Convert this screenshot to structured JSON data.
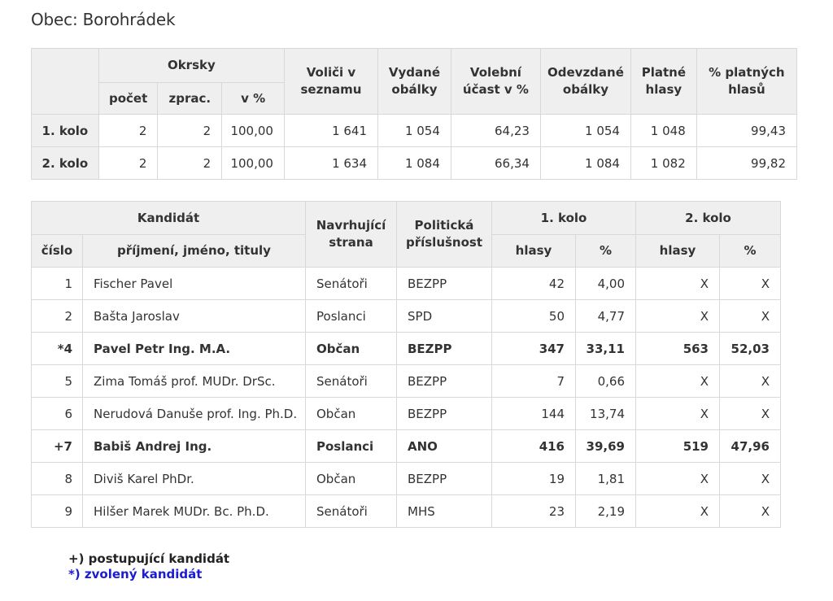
{
  "page_title": "Obec: Borohrádek",
  "turnout_table": {
    "headers": {
      "okrsky": "Okrsky",
      "pocet": "počet",
      "zprac": "zprac.",
      "v_pct": "v %",
      "volici": "Voliči v seznamu",
      "vydane": "Vydané obálky",
      "ucast": "Volební účast v %",
      "odevzdane": "Odevzdané obálky",
      "platne": "Platné hlasy",
      "pct_platnych": "% platných hlasů"
    },
    "rows": [
      {
        "label": "1. kolo",
        "pocet": "2",
        "zprac": "2",
        "v_pct": "100,00",
        "volici": "1 641",
        "vydane": "1 054",
        "ucast": "64,23",
        "odevzdane": "1 054",
        "platne": "1 048",
        "pct_platnych": "99,43"
      },
      {
        "label": "2. kolo",
        "pocet": "2",
        "zprac": "2",
        "v_pct": "100,00",
        "volici": "1 634",
        "vydane": "1 084",
        "ucast": "66,34",
        "odevzdane": "1 084",
        "platne": "1 082",
        "pct_platnych": "99,82"
      }
    ]
  },
  "candidates_table": {
    "headers": {
      "kandidat": "Kandidát",
      "cislo": "číslo",
      "jmeno": "příjmení, jméno, tituly",
      "strana": "Navrhující strana",
      "prislusnost": "Politická příslušnost",
      "kolo1": "1. kolo",
      "kolo2": "2. kolo",
      "hlasy": "hlasy",
      "pct": "%"
    },
    "rows": [
      {
        "cislo": "1",
        "jmeno": "Fischer Pavel",
        "strana": "Senátoři",
        "prislusnost": "BEZPP",
        "h1": "42",
        "p1": "4,00",
        "h2": "X",
        "p2": "X"
      },
      {
        "cislo": "2",
        "jmeno": "Bašta Jaroslav",
        "strana": "Poslanci",
        "prislusnost": "SPD",
        "h1": "50",
        "p1": "4,77",
        "h2": "X",
        "p2": "X"
      },
      {
        "cislo": "*4",
        "jmeno": "Pavel Petr Ing. M.A.",
        "strana": "Občan",
        "prislusnost": "BEZPP",
        "h1": "347",
        "p1": "33,11",
        "h2": "563",
        "p2": "52,03"
      },
      {
        "cislo": "5",
        "jmeno": "Zima Tomáš prof. MUDr. DrSc.",
        "strana": "Senátoři",
        "prislusnost": "BEZPP",
        "h1": "7",
        "p1": "0,66",
        "h2": "X",
        "p2": "X"
      },
      {
        "cislo": "6",
        "jmeno": "Nerudová Danuše prof. Ing. Ph.D.",
        "strana": "Občan",
        "prislusnost": "BEZPP",
        "h1": "144",
        "p1": "13,74",
        "h2": "X",
        "p2": "X"
      },
      {
        "cislo": "+7",
        "jmeno": "Babiš Andrej Ing.",
        "strana": "Poslanci",
        "prislusnost": "ANO",
        "h1": "416",
        "p1": "39,69",
        "h2": "519",
        "p2": "47,96"
      },
      {
        "cislo": "8",
        "jmeno": "Diviš Karel PhDr.",
        "strana": "Občan",
        "prislusnost": "BEZPP",
        "h1": "19",
        "p1": "1,81",
        "h2": "X",
        "p2": "X"
      },
      {
        "cislo": "9",
        "jmeno": "Hilšer Marek MUDr. Bc. Ph.D.",
        "strana": "Senátoři",
        "prislusnost": "MHS",
        "h1": "23",
        "p1": "2,19",
        "h2": "X",
        "p2": "X"
      }
    ]
  },
  "legend": {
    "advancing": "+) postupující kandidát",
    "elected": "*) zvolený kandidát"
  },
  "colors": {
    "elected": "#1b1bd6",
    "header_bg": "#efefef",
    "border": "#d8d8d8",
    "text": "#333333"
  }
}
